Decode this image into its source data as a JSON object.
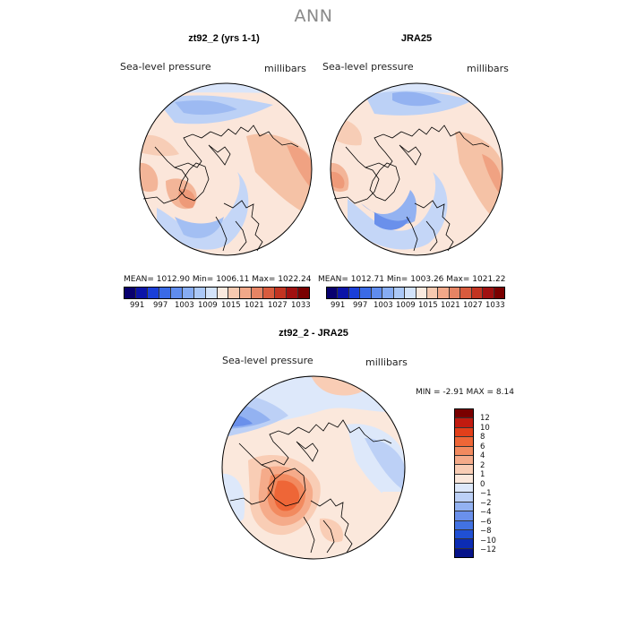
{
  "suptitle": "ANN",
  "panels": [
    {
      "title": "zt92_2 (yrs 1-1)",
      "field": "Sea-level pressure",
      "units": "millibars",
      "stats": "MEAN= 1012.90   Min= 1006.11   Max= 1022.24"
    },
    {
      "title": "JRA25",
      "field": "Sea-level pressure",
      "units": "millibars",
      "stats": "MEAN= 1012.71   Min= 1003.26   Max= 1021.22"
    },
    {
      "title": "zt92_2 - JRA25",
      "field": "Sea-level pressure",
      "units": "millibars",
      "stats": "MIN =   -2.91 MAX =    8.14"
    }
  ],
  "abs_colorbar": {
    "colors": [
      "#08006e",
      "#0b14a8",
      "#1a3fd8",
      "#3a6ae6",
      "#5f8cee",
      "#86acf3",
      "#abc8f7",
      "#d3e3fa",
      "#faeadf",
      "#f6c9b0",
      "#f1a889",
      "#e68464",
      "#d85b3d",
      "#c23421",
      "#a01010",
      "#7a0000"
    ],
    "ticks": [
      "991",
      "997",
      "1003",
      "1009",
      "1015",
      "1021",
      "1027",
      "1033"
    ]
  },
  "diff_colorbar": {
    "colors": [
      "#7a0000",
      "#c11b10",
      "#e23f1a",
      "#ee6637",
      "#f28a5f",
      "#f5ab8a",
      "#f9cdb5",
      "#fbe8dc",
      "#dde8fa",
      "#bcd0f6",
      "#93b2f1",
      "#6a90eb",
      "#4272e2",
      "#2050d4",
      "#0c2cb4",
      "#06138a"
    ],
    "ticks": [
      "12",
      "10",
      "8",
      "6",
      "4",
      "2",
      "1",
      "0",
      "−1",
      "−2",
      "−4",
      "−6",
      "−8",
      "−10",
      "−12"
    ]
  }
}
